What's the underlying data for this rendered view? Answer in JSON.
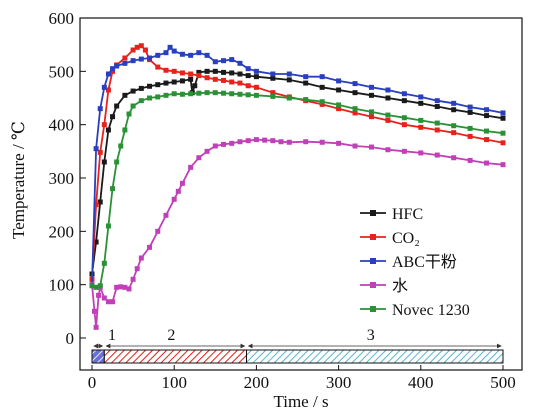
{
  "chart_data": {
    "type": "line",
    "xlabel": "Time / s",
    "ylabel": "Temperature / ℃",
    "xlim": [
      0,
      500
    ],
    "ylim": [
      0,
      600
    ],
    "x_ticks": [
      "0",
      "100",
      "200",
      "300",
      "400",
      "500"
    ],
    "y_ticks": [
      "0",
      "100",
      "200",
      "300",
      "400",
      "500",
      "600"
    ],
    "grid": false,
    "legend_position": "center-right",
    "series": [
      {
        "name": "HFC",
        "color": "#1a1a1a",
        "marker": "square",
        "points": [
          [
            0,
            120
          ],
          [
            5,
            180
          ],
          [
            10,
            255
          ],
          [
            15,
            330
          ],
          [
            20,
            390
          ],
          [
            25,
            415
          ],
          [
            30,
            435
          ],
          [
            40,
            455
          ],
          [
            50,
            463
          ],
          [
            60,
            468
          ],
          [
            70,
            472
          ],
          [
            80,
            475
          ],
          [
            90,
            478
          ],
          [
            100,
            480
          ],
          [
            110,
            482
          ],
          [
            120,
            485
          ],
          [
            122,
            460
          ],
          [
            125,
            473
          ],
          [
            130,
            498
          ],
          [
            140,
            500
          ],
          [
            150,
            500
          ],
          [
            160,
            498
          ],
          [
            170,
            497
          ],
          [
            180,
            495
          ],
          [
            190,
            492
          ],
          [
            200,
            490
          ],
          [
            220,
            487
          ],
          [
            240,
            484
          ],
          [
            260,
            478
          ],
          [
            280,
            470
          ],
          [
            300,
            465
          ],
          [
            320,
            460
          ],
          [
            340,
            455
          ],
          [
            360,
            450
          ],
          [
            380,
            445
          ],
          [
            400,
            440
          ],
          [
            420,
            434
          ],
          [
            440,
            428
          ],
          [
            460,
            423
          ],
          [
            480,
            417
          ],
          [
            500,
            412
          ]
        ]
      },
      {
        "name": "CO₂",
        "color": "#e8221b",
        "marker": "square",
        "points": [
          [
            0,
            110
          ],
          [
            5,
            250
          ],
          [
            10,
            348
          ],
          [
            15,
            400
          ],
          [
            20,
            465
          ],
          [
            25,
            500
          ],
          [
            30,
            512
          ],
          [
            40,
            525
          ],
          [
            50,
            540
          ],
          [
            55,
            545
          ],
          [
            60,
            548
          ],
          [
            65,
            540
          ],
          [
            70,
            522
          ],
          [
            80,
            508
          ],
          [
            90,
            502
          ],
          [
            100,
            500
          ],
          [
            110,
            497
          ],
          [
            120,
            495
          ],
          [
            130,
            492
          ],
          [
            140,
            488
          ],
          [
            150,
            485
          ],
          [
            160,
            483
          ],
          [
            170,
            480
          ],
          [
            180,
            478
          ],
          [
            190,
            473
          ],
          [
            200,
            470
          ],
          [
            220,
            460
          ],
          [
            240,
            452
          ],
          [
            260,
            445
          ],
          [
            280,
            438
          ],
          [
            300,
            430
          ],
          [
            320,
            422
          ],
          [
            340,
            415
          ],
          [
            360,
            408
          ],
          [
            380,
            400
          ],
          [
            400,
            395
          ],
          [
            420,
            390
          ],
          [
            440,
            385
          ],
          [
            460,
            378
          ],
          [
            480,
            372
          ],
          [
            500,
            366
          ]
        ]
      },
      {
        "name": "ABC干粉",
        "color": "#2a3fbd",
        "marker": "square",
        "points": [
          [
            0,
            100
          ],
          [
            5,
            355
          ],
          [
            10,
            430
          ],
          [
            15,
            470
          ],
          [
            20,
            495
          ],
          [
            25,
            505
          ],
          [
            30,
            510
          ],
          [
            40,
            515
          ],
          [
            50,
            520
          ],
          [
            60,
            523
          ],
          [
            70,
            525
          ],
          [
            80,
            530
          ],
          [
            90,
            535
          ],
          [
            95,
            545
          ],
          [
            100,
            538
          ],
          [
            110,
            532
          ],
          [
            120,
            530
          ],
          [
            130,
            535
          ],
          [
            140,
            530
          ],
          [
            150,
            518
          ],
          [
            160,
            520
          ],
          [
            170,
            522
          ],
          [
            180,
            515
          ],
          [
            190,
            505
          ],
          [
            200,
            500
          ],
          [
            220,
            495
          ],
          [
            240,
            495
          ],
          [
            260,
            490
          ],
          [
            280,
            490
          ],
          [
            300,
            482
          ],
          [
            320,
            477
          ],
          [
            340,
            470
          ],
          [
            360,
            465
          ],
          [
            380,
            458
          ],
          [
            400,
            452
          ],
          [
            420,
            445
          ],
          [
            440,
            440
          ],
          [
            460,
            433
          ],
          [
            480,
            428
          ],
          [
            500,
            422
          ]
        ]
      },
      {
        "name": "水",
        "color": "#c040b8",
        "marker": "square",
        "points": [
          [
            0,
            100
          ],
          [
            3,
            50
          ],
          [
            5,
            20
          ],
          [
            8,
            80
          ],
          [
            10,
            95
          ],
          [
            15,
            75
          ],
          [
            20,
            68
          ],
          [
            25,
            68
          ],
          [
            30,
            95
          ],
          [
            35,
            96
          ],
          [
            40,
            95
          ],
          [
            45,
            92
          ],
          [
            50,
            110
          ],
          [
            55,
            130
          ],
          [
            60,
            150
          ],
          [
            70,
            170
          ],
          [
            80,
            200
          ],
          [
            90,
            230
          ],
          [
            100,
            260
          ],
          [
            105,
            275
          ],
          [
            110,
            290
          ],
          [
            120,
            320
          ],
          [
            130,
            338
          ],
          [
            140,
            350
          ],
          [
            150,
            360
          ],
          [
            160,
            363
          ],
          [
            170,
            365
          ],
          [
            180,
            368
          ],
          [
            190,
            370
          ],
          [
            200,
            372
          ],
          [
            210,
            371
          ],
          [
            220,
            370
          ],
          [
            230,
            368
          ],
          [
            240,
            367
          ],
          [
            260,
            368
          ],
          [
            280,
            367
          ],
          [
            300,
            365
          ],
          [
            320,
            360
          ],
          [
            340,
            358
          ],
          [
            360,
            353
          ],
          [
            380,
            350
          ],
          [
            400,
            347
          ],
          [
            420,
            343
          ],
          [
            440,
            338
          ],
          [
            460,
            333
          ],
          [
            480,
            328
          ],
          [
            500,
            325
          ]
        ]
      },
      {
        "name": "Novec 1230",
        "color": "#2a9136",
        "marker": "square",
        "points": [
          [
            0,
            98
          ],
          [
            5,
            95
          ],
          [
            10,
            98
          ],
          [
            15,
            140
          ],
          [
            20,
            210
          ],
          [
            25,
            280
          ],
          [
            30,
            330
          ],
          [
            35,
            360
          ],
          [
            40,
            390
          ],
          [
            45,
            420
          ],
          [
            50,
            435
          ],
          [
            60,
            445
          ],
          [
            70,
            450
          ],
          [
            80,
            452
          ],
          [
            90,
            455
          ],
          [
            100,
            458
          ],
          [
            110,
            457
          ],
          [
            120,
            458
          ],
          [
            130,
            459
          ],
          [
            140,
            460
          ],
          [
            150,
            460
          ],
          [
            160,
            459
          ],
          [
            170,
            458
          ],
          [
            180,
            457
          ],
          [
            190,
            456
          ],
          [
            200,
            455
          ],
          [
            220,
            453
          ],
          [
            240,
            450
          ],
          [
            260,
            447
          ],
          [
            280,
            443
          ],
          [
            300,
            437
          ],
          [
            320,
            430
          ],
          [
            340,
            424
          ],
          [
            360,
            418
          ],
          [
            380,
            413
          ],
          [
            400,
            408
          ],
          [
            420,
            403
          ],
          [
            440,
            398
          ],
          [
            460,
            393
          ],
          [
            480,
            388
          ],
          [
            500,
            384
          ]
        ]
      }
    ],
    "phases": [
      {
        "label": "1",
        "start": 0,
        "end": 15,
        "pattern": "blue-hatch"
      },
      {
        "label": "2",
        "start": 15,
        "end": 188,
        "pattern": "red-hatch"
      },
      {
        "label": "3",
        "start": 188,
        "end": 500,
        "pattern": "teal-hatch"
      }
    ]
  }
}
